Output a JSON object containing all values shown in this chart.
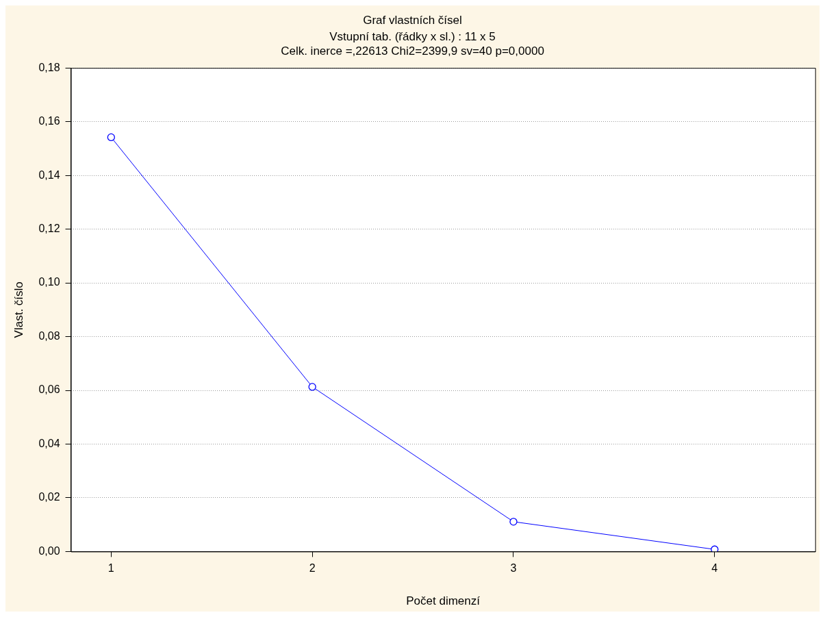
{
  "chart_data": {
    "type": "line",
    "title": "Graf vlastních čísel",
    "subtitle": "Vstupní tab. (řádky x sl.) : 11 x 5",
    "annotations": [
      "Celk. inerce =,22613 Chi2=2399,9 sv=40 p=0,0000"
    ],
    "xlabel": "Počet dimenzí",
    "ylabel": "Vlast. číslo",
    "x": [
      1,
      2,
      3,
      4
    ],
    "series": [
      {
        "color": "#0000ff",
        "values": [
          0.1542,
          0.0613,
          0.0111,
          0.0008
        ]
      }
    ],
    "xlim": [
      0.8,
      4.5
    ],
    "xticks": [
      1,
      2,
      3,
      4
    ],
    "ylim": [
      0,
      0.18
    ],
    "yticks": [
      {
        "value": 0,
        "label": "0,00"
      },
      {
        "value": 0.02,
        "label": "0,02"
      },
      {
        "value": 0.04,
        "label": "0,04"
      },
      {
        "value": 0.06,
        "label": "0,06"
      },
      {
        "value": 0.08,
        "label": "0,08"
      },
      {
        "value": 0.1,
        "label": "0,10"
      },
      {
        "value": 0.12,
        "label": "0,12"
      },
      {
        "value": 0.14,
        "label": "0,14"
      },
      {
        "value": 0.16,
        "label": "0,16"
      },
      {
        "value": 0.18,
        "label": "0,18"
      }
    ],
    "grid": "y",
    "marker": "circle",
    "line_style": "solid",
    "legend": false
  }
}
